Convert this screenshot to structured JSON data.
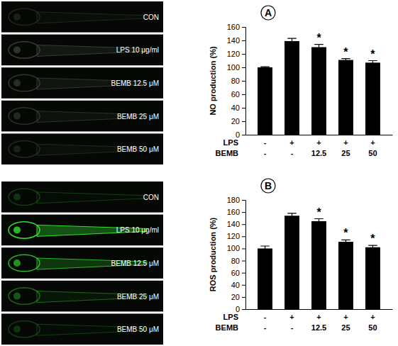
{
  "image_panels": [
    {
      "labels": [
        "CON",
        "LPS 10 μg/ml",
        "BEMB 12.5 μM",
        "BEMB 25 μM",
        "BEMB 50 μM"
      ]
    },
    {
      "labels": [
        "CON",
        "LPS 10 μg/ml",
        "BEMB 12.5 μM",
        "BEMB 25 μM",
        "BEMB 50 μM"
      ]
    }
  ],
  "chart_data": [
    {
      "type": "bar",
      "panel_label": "A",
      "y_label": "NO production (%)",
      "row_labels": [
        "LPS",
        "BEMB"
      ],
      "categories": [
        [
          "-",
          "-"
        ],
        [
          "+",
          "-"
        ],
        [
          "+",
          "12.5"
        ],
        [
          "+",
          "25"
        ],
        [
          "+",
          "50"
        ]
      ],
      "values": [
        100,
        139,
        130,
        111,
        107
      ],
      "errors": [
        1,
        4,
        4,
        2,
        3
      ],
      "color": "#000000",
      "ylim": [
        0,
        160
      ],
      "yticks": [
        0,
        20,
        40,
        60,
        80,
        100,
        120,
        140,
        160
      ],
      "annotations": [
        {
          "category": 2,
          "text": "*"
        },
        {
          "category": 3,
          "text": "*"
        },
        {
          "category": 4,
          "text": "*"
        }
      ]
    },
    {
      "type": "bar",
      "panel_label": "B",
      "y_label": "ROS production (%)",
      "row_labels": [
        "LPS",
        "BEMB"
      ],
      "categories": [
        [
          "-",
          "-"
        ],
        [
          "+",
          "-"
        ],
        [
          "+",
          "12.5"
        ],
        [
          "+",
          "25"
        ],
        [
          "+",
          "50"
        ]
      ],
      "values": [
        100,
        154,
        145,
        111,
        102
      ],
      "errors": [
        4,
        4,
        4,
        3,
        3
      ],
      "color": "#000000",
      "ylim": [
        0,
        180
      ],
      "yticks": [
        0,
        20,
        40,
        60,
        80,
        100,
        120,
        140,
        160,
        180
      ],
      "annotations": [
        {
          "category": 2,
          "text": "*"
        },
        {
          "category": 3,
          "text": "*"
        },
        {
          "category": 4,
          "text": "*"
        }
      ]
    }
  ]
}
